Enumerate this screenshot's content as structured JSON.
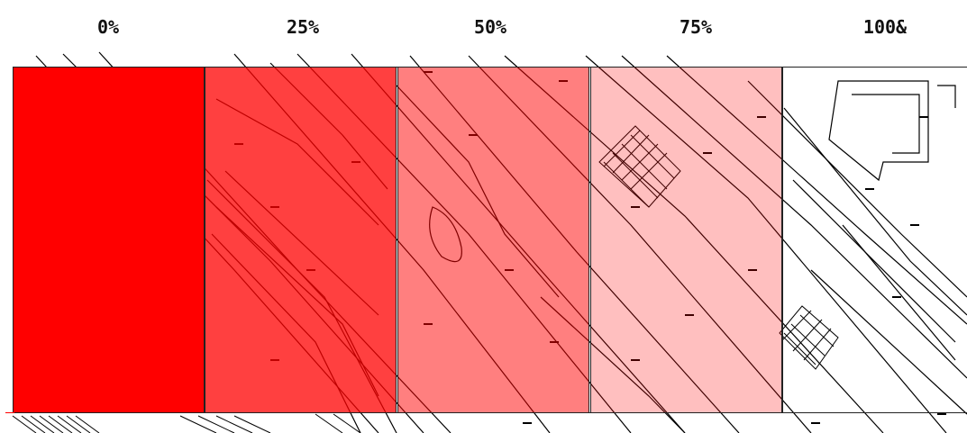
{
  "overlay": {
    "color": "#ff0000",
    "panels": [
      {
        "label": "0%",
        "transparency": 0.0
      },
      {
        "label": "25%",
        "transparency": 0.25
      },
      {
        "label": "50%",
        "transparency": 0.5
      },
      {
        "label": "75%",
        "transparency": 0.75
      },
      {
        "label": "100&",
        "transparency": 1.0
      }
    ]
  }
}
